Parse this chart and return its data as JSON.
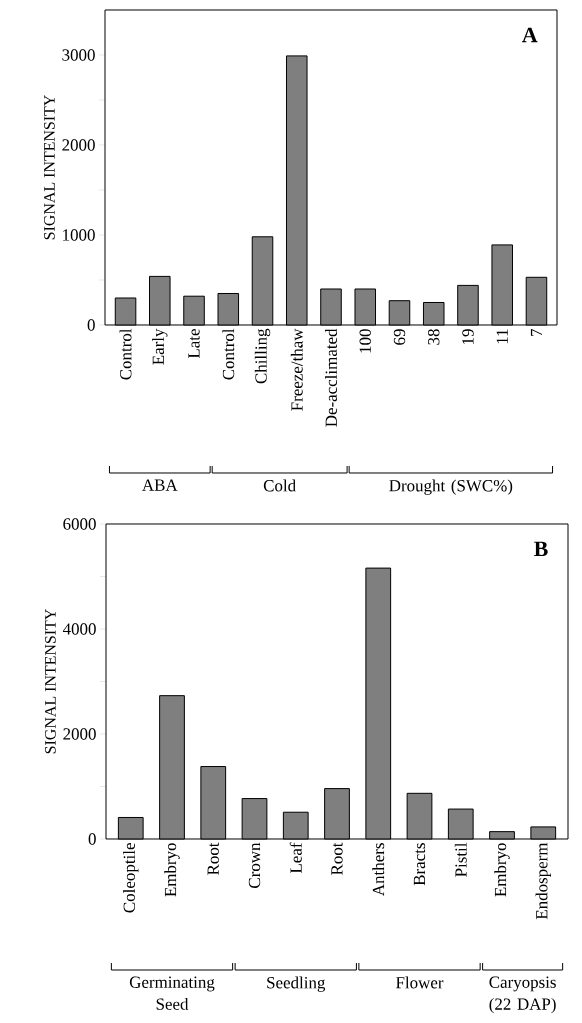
{
  "chart_data": [
    {
      "type": "bar",
      "title": "A",
      "ylabel": "SIGNAL INTENSITY",
      "categories": [
        "Control",
        "Early",
        "Late",
        "Control",
        "Chilling",
        "Freeze/thaw",
        "De-acclimated",
        "100",
        "69",
        "38",
        "19",
        "11",
        "7"
      ],
      "values": [
        300,
        540,
        320,
        350,
        980,
        2990,
        400,
        400,
        270,
        250,
        440,
        890,
        530
      ],
      "color": "#7f7f7f",
      "ylim": [
        0,
        3500
      ],
      "yticks": [
        0,
        {
          "value": 500,
          "label": null
        },
        1000,
        {
          "value": 1500,
          "label": null
        },
        2000,
        {
          "value": 2500,
          "label": null
        },
        3000
      ],
      "annotations": [
        "ABA",
        "Cold",
        "Drought (SWC%)"
      ]
    },
    {
      "type": "bar",
      "title": "B",
      "ylabel": "SIGNAL INTENSITY",
      "categories": [
        "Coleoptile",
        "Embryo",
        "Root",
        "Crown",
        "Leaf",
        "Root",
        "Anthers",
        "Bracts",
        "Pistil",
        "Embryo",
        "Endosperm"
      ],
      "values": [
        410,
        2730,
        1380,
        770,
        510,
        960,
        5160,
        870,
        570,
        140,
        230
      ],
      "color": "#7f7f7f",
      "ylim": [
        0,
        6000
      ],
      "yticks": [
        0,
        {
          "value": 1000,
          "label": null
        },
        2000,
        {
          "value": 3000,
          "label": null
        },
        4000,
        {
          "value": 5000,
          "label": null
        },
        6000
      ],
      "annotations": [
        "Germinating Seed",
        "Seedling",
        "Flower",
        "Caryopsis (22 DAP)"
      ]
    }
  ]
}
